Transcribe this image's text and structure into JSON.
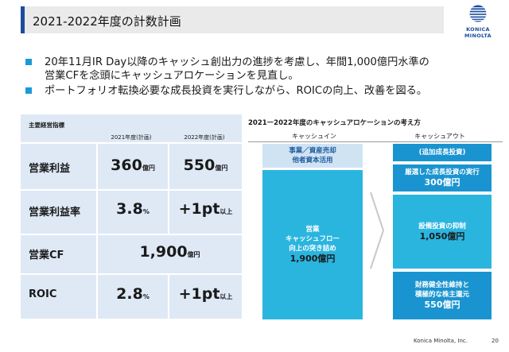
{
  "header": {
    "title": "2021-2022年度の計数計画"
  },
  "logo": {
    "text": "KONICA MINOLTA"
  },
  "bullets": [
    {
      "lines": [
        "20年11月IR Day以降のキャッシュ創出力の進捗を考慮し、年間1,000億円水準の",
        "営業CFを念頭にキャッシュアロケーションを見直し。"
      ]
    },
    {
      "lines": [
        "ポートフォリオ転換必要な成長投資を実行しながら、ROICの向上、改善を図る。"
      ]
    }
  ],
  "table": {
    "caption": "主要経営指標",
    "col1": "2021年度(計画)",
    "col2": "2022年度(計画)",
    "rows": [
      {
        "label": "営業利益",
        "v1": "360",
        "u1": "億円",
        "v2": "550",
        "u2": "億円"
      },
      {
        "label": "営業利益率",
        "v1": "3.8",
        "u1": "%",
        "v2": "+1pt",
        "u2": "以上"
      },
      {
        "label": "営業CF",
        "merged": "1,900",
        "mu": "億円"
      },
      {
        "label": "ROIC",
        "v1": "2.8",
        "u1": "%",
        "v2": "+1pt",
        "u2": "以上"
      }
    ]
  },
  "diagram": {
    "title": "2021ー2022年度のキャッシュアロケーションの考え方",
    "cash_in": "キャッシュイン",
    "cash_out": "キャッシュアウト",
    "in_top": [
      "事業／資産売却",
      "他者資本活用"
    ],
    "in_main": [
      "営業",
      "キャッシュフロー",
      "向上の突き詰め"
    ],
    "in_main_value": "1,900億円",
    "out_1": "(追加成長投資)",
    "out_2_label": "厳選した成長投資の実行",
    "out_2_value": "300億円",
    "out_3_label": "設備投資の抑制",
    "out_3_value": "1,050億円",
    "out_4_label": [
      "財務健全性維持と",
      "積極的な株主還元"
    ],
    "out_4_value": "550億円"
  },
  "footer": {
    "company": "Konica Minolta, Inc.",
    "page": "20"
  }
}
